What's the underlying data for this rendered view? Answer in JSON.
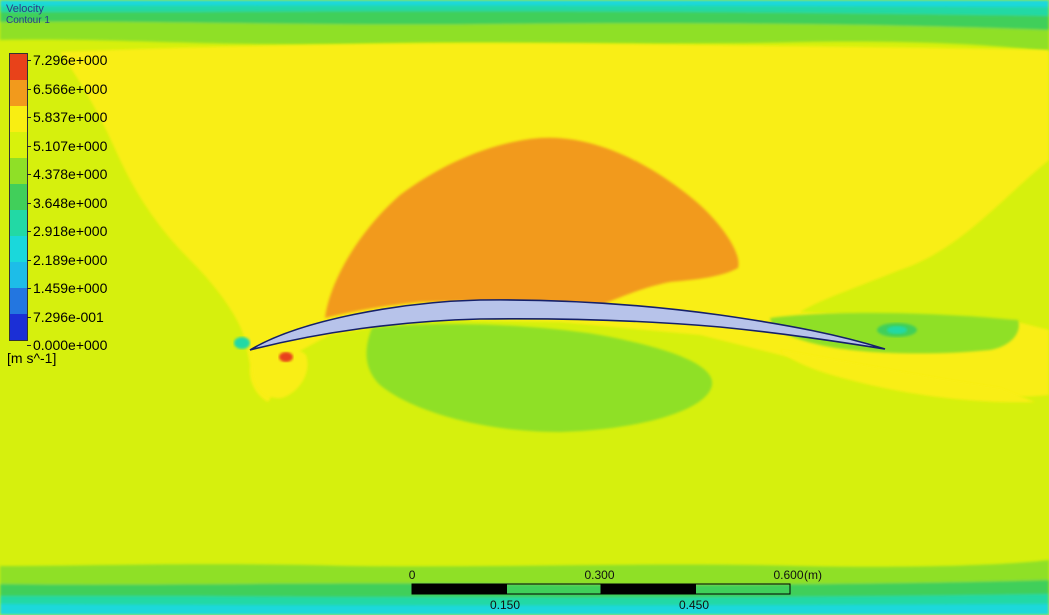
{
  "legend": {
    "title": "Velocity",
    "subtitle": "Contour 1",
    "unit": "[m s^-1]",
    "values": [
      "7.296e+000",
      "6.566e+000",
      "5.837e+000",
      "5.107e+000",
      "4.378e+000",
      "3.648e+000",
      "2.918e+000",
      "2.189e+000",
      "1.459e+000",
      "7.296e-001",
      "0.000e+000"
    ],
    "colors": [
      "#e8421a",
      "#f29a1c",
      "#f9ee12",
      "#d8f20c",
      "#8fe027",
      "#41cf5a",
      "#22d9a5",
      "#1ad8db",
      "#1dbde8",
      "#2376e0",
      "#1b2fd6"
    ]
  },
  "scale": {
    "top_labels": [
      "0",
      "0.300",
      "0.600",
      "(m)"
    ],
    "bottom_labels": [
      "0.150",
      "0.450"
    ],
    "top_values": [
      0,
      0.3,
      0.6
    ],
    "bottom_values": [
      0.15,
      0.45
    ]
  }
}
